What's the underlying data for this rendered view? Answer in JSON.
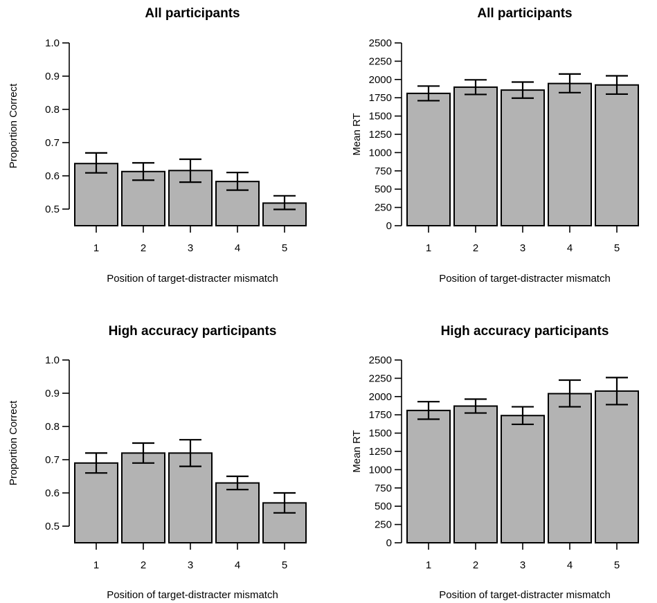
{
  "chart_data": [
    {
      "type": "bar",
      "title": "All participants",
      "xlabel": "Position of target-distracter mismatch",
      "ylabel": "Proportion Correct",
      "categories": [
        "1",
        "2",
        "3",
        "4",
        "5"
      ],
      "values": [
        0.637,
        0.613,
        0.616,
        0.583,
        0.518
      ],
      "error_low": [
        0.609,
        0.587,
        0.581,
        0.557,
        0.499
      ],
      "error_high": [
        0.669,
        0.639,
        0.65,
        0.61,
        0.54
      ],
      "ylim": [
        0.5,
        1.0
      ],
      "yticks": [
        "0.5",
        "0.6",
        "0.7",
        "0.8",
        "0.9",
        "1.0"
      ],
      "bar_color": "#b3b3b3",
      "grid": false
    },
    {
      "type": "bar",
      "title": "All participants",
      "xlabel": "Position of target-distracter mismatch",
      "ylabel": "Mean RT",
      "categories": [
        "1",
        "2",
        "3",
        "4",
        "5"
      ],
      "values": [
        1810,
        1895,
        1855,
        1945,
        1925
      ],
      "error_low": [
        1710,
        1795,
        1745,
        1820,
        1800
      ],
      "error_high": [
        1910,
        1995,
        1965,
        2075,
        2050
      ],
      "ylim": [
        0,
        2500
      ],
      "yticks": [
        "0",
        "250",
        "500",
        "750",
        "1000",
        "1250",
        "1500",
        "1750",
        "2000",
        "2250",
        "2500"
      ],
      "bar_color": "#b3b3b3",
      "grid": false
    },
    {
      "type": "bar",
      "title": "High accuracy participants",
      "xlabel": "Position of target-distracter mismatch",
      "ylabel": "Proportion Correct",
      "categories": [
        "1",
        "2",
        "3",
        "4",
        "5"
      ],
      "values": [
        0.69,
        0.72,
        0.72,
        0.63,
        0.57
      ],
      "error_low": [
        0.66,
        0.69,
        0.68,
        0.61,
        0.54
      ],
      "error_high": [
        0.72,
        0.75,
        0.76,
        0.65,
        0.6
      ],
      "ylim": [
        0.5,
        1.0
      ],
      "yticks": [
        "0.5",
        "0.6",
        "0.7",
        "0.8",
        "0.9",
        "1.0"
      ],
      "bar_color": "#b3b3b3",
      "grid": false
    },
    {
      "type": "bar",
      "title": "High accuracy participants",
      "xlabel": "Position of target-distracter mismatch",
      "ylabel": "Mean RT",
      "categories": [
        "1",
        "2",
        "3",
        "4",
        "5"
      ],
      "values": [
        1810,
        1870,
        1740,
        2040,
        2075
      ],
      "error_low": [
        1690,
        1775,
        1620,
        1860,
        1890
      ],
      "error_high": [
        1930,
        1965,
        1860,
        2225,
        2260
      ],
      "ylim": [
        0,
        2500
      ],
      "yticks": [
        "0",
        "250",
        "500",
        "750",
        "1000",
        "1250",
        "1500",
        "1750",
        "2000",
        "2250",
        "2500"
      ],
      "bar_color": "#b3b3b3",
      "grid": false
    }
  ]
}
